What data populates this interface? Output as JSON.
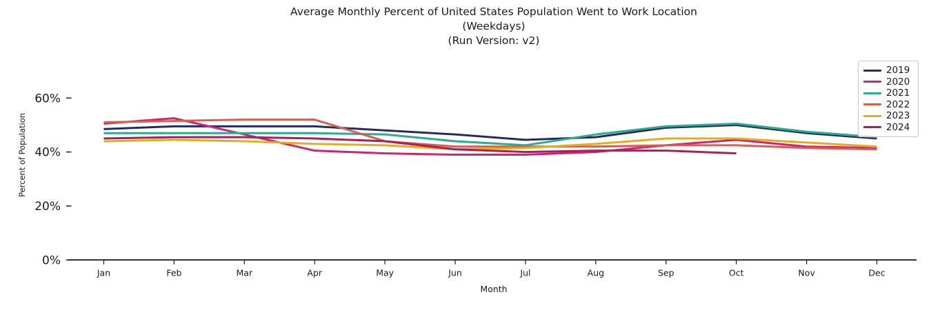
{
  "figure": {
    "background": "#ffffff",
    "text_color": "#1a1a1a",
    "axis_color": "#1a1a1a"
  },
  "chart_data": {
    "type": "line",
    "title_lines": [
      "Average Monthly Percent of United States Population Went to Work Location",
      "(Weekdays)",
      "(Run Version: v2)"
    ],
    "xlabel": "Month",
    "ylabel": "Percent of Population",
    "categories": [
      "Jan",
      "Feb",
      "Mar",
      "Apr",
      "May",
      "Jun",
      "Jul",
      "Aug",
      "Sep",
      "Oct",
      "Nov",
      "Dec"
    ],
    "y_ticks": [
      {
        "label": "0%",
        "value": 0
      },
      {
        "label": "20%",
        "value": 20
      },
      {
        "label": "40%",
        "value": 40
      },
      {
        "label": "60%",
        "value": 60
      }
    ],
    "ylim": [
      0,
      63
    ],
    "grid": false,
    "legend_position": "upper right",
    "units": "percent",
    "series": [
      {
        "name": "2019",
        "color": "#262b5f",
        "values": [
          48.5,
          49.5,
          49.5,
          49.5,
          48.0,
          46.5,
          44.5,
          45.5,
          49.0,
          50.0,
          47.0,
          45.0
        ]
      },
      {
        "name": "2020",
        "color": "#ce2379",
        "values": [
          50.5,
          52.5,
          46.5,
          40.5,
          39.5,
          39.0,
          39.0,
          40.0,
          42.5,
          44.5,
          42.0,
          41.5
        ]
      },
      {
        "name": "2021",
        "color": "#29ad8c",
        "values": [
          47.0,
          47.0,
          47.0,
          47.0,
          46.5,
          44.0,
          42.5,
          46.5,
          49.5,
          50.5,
          47.5,
          45.5
        ]
      },
      {
        "name": "2022",
        "color": "#dc5c4e",
        "values": [
          51.0,
          51.5,
          52.0,
          52.0,
          44.0,
          42.0,
          42.0,
          42.0,
          42.5,
          42.5,
          41.5,
          41.0
        ]
      },
      {
        "name": "2023",
        "color": "#e3ad1b",
        "values": [
          44.0,
          44.5,
          44.0,
          43.0,
          42.5,
          41.0,
          41.5,
          43.0,
          45.0,
          45.0,
          43.5,
          42.0
        ]
      },
      {
        "name": "2024",
        "color": "#a91f5c",
        "values": [
          45.0,
          45.5,
          45.5,
          45.0,
          44.0,
          41.0,
          40.0,
          40.5,
          40.5,
          39.5,
          null,
          null
        ]
      }
    ]
  }
}
